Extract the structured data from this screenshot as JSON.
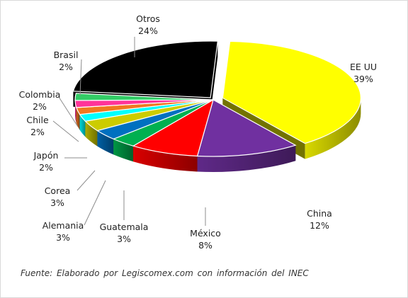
{
  "chart_data": {
    "type": "pie",
    "style": "3d-exploded",
    "title": "",
    "slices": [
      {
        "label": "EE UU",
        "pct_label": "39%",
        "value": 39,
        "color": "#ffff00"
      },
      {
        "label": "China",
        "pct_label": "12%",
        "value": 12,
        "color": "#7030a0"
      },
      {
        "label": "México",
        "pct_label": "8%",
        "value": 8,
        "color": "#ff0000"
      },
      {
        "label": "Guatemala",
        "pct_label": "3%",
        "value": 3,
        "color": "#00b050"
      },
      {
        "label": "Alemania",
        "pct_label": "3%",
        "value": 3,
        "color": "#0070c0"
      },
      {
        "label": "Corea",
        "pct_label": "3%",
        "value": 3,
        "color": "#cccc00"
      },
      {
        "label": "Japón",
        "pct_label": "2%",
        "value": 2,
        "color": "#00ffff"
      },
      {
        "label": "Chile",
        "pct_label": "2%",
        "value": 2,
        "color": "#f07820"
      },
      {
        "label": "Colombia",
        "pct_label": "2%",
        "value": 2,
        "color": "#ff3399"
      },
      {
        "label": "Brasil",
        "pct_label": "2%",
        "value": 2,
        "color": "#33cc66"
      },
      {
        "label": "Otros",
        "pct_label": "24%",
        "value": 24,
        "color": "#000000"
      }
    ]
  },
  "footer": {
    "source": "Fuente: Elaborado por Legiscomex.com con información del INEC"
  }
}
